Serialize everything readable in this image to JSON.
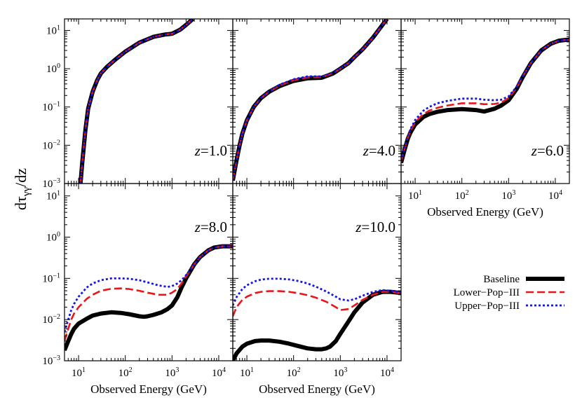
{
  "figure": {
    "ylabel": "dτγγ/dz",
    "xlabel": "Observed Energy (GeV)"
  },
  "legend": {
    "placement": "bottom-right",
    "items": [
      {
        "label": "Baseline",
        "color": "#000000",
        "style": "solid"
      },
      {
        "label": "Lower−Pop−III",
        "color": "#e8151b",
        "style": "dashed"
      },
      {
        "label": "Upper−Pop−III",
        "color": "#1515e6",
        "style": "dotted"
      }
    ]
  },
  "chart_data": [
    {
      "type": "line",
      "panel": "z=1.0",
      "annotation": "z=1.0",
      "xscale": "log",
      "yscale": "log",
      "xlim": [
        5,
        20000
      ],
      "ylim": [
        0.001,
        20
      ],
      "series": [
        {
          "name": "Baseline",
          "x": [
            11,
            12,
            14,
            16,
            20,
            25,
            30,
            40,
            60,
            100,
            200,
            400,
            700,
            1000,
            1500,
            2000,
            2800
          ],
          "y": [
            0.001,
            0.0035,
            0.025,
            0.09,
            0.25,
            0.5,
            0.75,
            1.1,
            1.7,
            2.8,
            4.8,
            6.8,
            7.8,
            8.2,
            10.5,
            14,
            20
          ]
        },
        {
          "name": "Lower−Pop−III",
          "x": [
            11,
            12,
            14,
            16,
            20,
            25,
            30,
            40,
            60,
            100,
            200,
            400,
            700,
            1000,
            1500,
            2000,
            2800
          ],
          "y": [
            0.001,
            0.0035,
            0.025,
            0.09,
            0.25,
            0.5,
            0.75,
            1.1,
            1.7,
            2.8,
            4.8,
            6.8,
            7.8,
            8.2,
            10.5,
            14,
            20
          ]
        },
        {
          "name": "Upper−Pop−III",
          "x": [
            11,
            12,
            14,
            16,
            20,
            25,
            30,
            40,
            60,
            100,
            200,
            400,
            700,
            1000,
            1500,
            2000,
            2800
          ],
          "y": [
            0.001,
            0.0035,
            0.025,
            0.09,
            0.25,
            0.5,
            0.75,
            1.1,
            1.7,
            2.8,
            4.8,
            6.8,
            7.8,
            8.2,
            10.5,
            14,
            20
          ]
        }
      ]
    },
    {
      "type": "line",
      "panel": "z=4.0",
      "annotation": "z=4.0",
      "xscale": "log",
      "yscale": "log",
      "xlim": [
        5,
        20000
      ],
      "ylim": [
        0.001,
        20
      ],
      "series": [
        {
          "name": "Baseline",
          "x": [
            5,
            6,
            7,
            8,
            10,
            14,
            20,
            30,
            50,
            100,
            200,
            400,
            700,
            1000,
            1500,
            2000,
            3000,
            5000,
            8000,
            10000
          ],
          "y": [
            0.0012,
            0.004,
            0.01,
            0.02,
            0.045,
            0.1,
            0.17,
            0.25,
            0.35,
            0.48,
            0.56,
            0.58,
            0.75,
            1.0,
            1.4,
            2.0,
            3.2,
            6.5,
            14,
            20
          ]
        },
        {
          "name": "Lower−Pop−III",
          "x": [
            5,
            6,
            7,
            8,
            10,
            14,
            20,
            30,
            50,
            100,
            200,
            400,
            700,
            1000,
            1500,
            2000,
            3000,
            5000,
            8000,
            10000
          ],
          "y": [
            0.0012,
            0.004,
            0.01,
            0.02,
            0.045,
            0.1,
            0.17,
            0.25,
            0.36,
            0.5,
            0.59,
            0.6,
            0.76,
            1.0,
            1.4,
            2.0,
            3.2,
            6.5,
            14,
            20
          ]
        },
        {
          "name": "Upper−Pop−III",
          "x": [
            5,
            6,
            7,
            8,
            10,
            14,
            20,
            30,
            50,
            100,
            200,
            400,
            700,
            1000,
            1500,
            2000,
            3000,
            5000,
            8000,
            10000
          ],
          "y": [
            0.0012,
            0.004,
            0.01,
            0.02,
            0.045,
            0.1,
            0.17,
            0.26,
            0.38,
            0.53,
            0.63,
            0.63,
            0.78,
            1.02,
            1.4,
            2.0,
            3.2,
            6.5,
            14,
            20
          ]
        }
      ]
    },
    {
      "type": "line",
      "panel": "z=6.0",
      "annotation": "z=6.0",
      "xscale": "log",
      "yscale": "log",
      "xlim": [
        5,
        20000
      ],
      "ylim": [
        0.001,
        20
      ],
      "series": [
        {
          "name": "Baseline",
          "x": [
            5,
            6,
            7,
            8,
            10,
            15,
            20,
            30,
            50,
            100,
            200,
            300,
            500,
            700,
            1000,
            1500,
            2000,
            3000,
            5000,
            8000,
            12000,
            20000
          ],
          "y": [
            0.0035,
            0.008,
            0.015,
            0.022,
            0.035,
            0.055,
            0.065,
            0.075,
            0.083,
            0.088,
            0.083,
            0.076,
            0.09,
            0.11,
            0.15,
            0.3,
            0.6,
            1.4,
            3.0,
            4.5,
            5.4,
            5.8
          ]
        },
        {
          "name": "Lower−Pop−III",
          "x": [
            5,
            6,
            7,
            8,
            10,
            15,
            20,
            30,
            50,
            100,
            200,
            300,
            500,
            700,
            1000,
            1500,
            2000,
            3000,
            5000,
            8000,
            12000,
            20000
          ],
          "y": [
            0.0037,
            0.0085,
            0.016,
            0.024,
            0.04,
            0.065,
            0.08,
            0.095,
            0.11,
            0.125,
            0.125,
            0.118,
            0.12,
            0.13,
            0.17,
            0.32,
            0.62,
            1.4,
            3.0,
            4.5,
            5.4,
            5.8
          ]
        },
        {
          "name": "Upper−Pop−III",
          "x": [
            5,
            6,
            7,
            8,
            10,
            15,
            20,
            30,
            50,
            100,
            200,
            300,
            500,
            700,
            1000,
            1500,
            2000,
            3000,
            5000,
            8000,
            12000,
            20000
          ],
          "y": [
            0.004,
            0.009,
            0.017,
            0.027,
            0.046,
            0.08,
            0.1,
            0.125,
            0.145,
            0.165,
            0.165,
            0.155,
            0.15,
            0.155,
            0.19,
            0.34,
            0.64,
            1.4,
            3.0,
            4.5,
            5.4,
            5.8
          ]
        }
      ]
    },
    {
      "type": "line",
      "panel": "z=8.0",
      "annotation": "z=8.0",
      "xscale": "log",
      "yscale": "log",
      "xlim": [
        5,
        20000
      ],
      "ylim": [
        0.001,
        20
      ],
      "series": [
        {
          "name": "Baseline",
          "x": [
            5,
            6,
            7,
            8,
            10,
            15,
            20,
            30,
            50,
            80,
            120,
            200,
            250,
            300,
            400,
            600,
            800,
            1000,
            1300,
            1600,
            2000,
            3000,
            4000,
            6000,
            8000,
            12000,
            20000
          ],
          "y": [
            0.0018,
            0.003,
            0.0045,
            0.006,
            0.008,
            0.0105,
            0.0125,
            0.014,
            0.015,
            0.0145,
            0.0135,
            0.012,
            0.0117,
            0.012,
            0.013,
            0.015,
            0.018,
            0.022,
            0.035,
            0.06,
            0.1,
            0.22,
            0.33,
            0.48,
            0.56,
            0.6,
            0.6
          ]
        },
        {
          "name": "Lower−Pop−III",
          "x": [
            5,
            6,
            7,
            8,
            10,
            15,
            20,
            30,
            50,
            80,
            120,
            200,
            300,
            500,
            800,
            1000,
            1300,
            1600,
            2000,
            3000,
            4000,
            6000,
            8000,
            12000,
            20000
          ],
          "y": [
            0.003,
            0.006,
            0.01,
            0.014,
            0.02,
            0.032,
            0.04,
            0.05,
            0.056,
            0.057,
            0.055,
            0.05,
            0.045,
            0.04,
            0.04,
            0.045,
            0.055,
            0.075,
            0.11,
            0.22,
            0.33,
            0.48,
            0.56,
            0.6,
            0.6
          ]
        },
        {
          "name": "Upper−Pop−III",
          "x": [
            5,
            6,
            7,
            8,
            10,
            15,
            20,
            30,
            50,
            80,
            120,
            200,
            300,
            500,
            800,
            1000,
            1300,
            1600,
            2000,
            3000,
            4000,
            6000,
            8000,
            12000,
            20000
          ],
          "y": [
            0.005,
            0.01,
            0.017,
            0.024,
            0.036,
            0.06,
            0.075,
            0.09,
            0.1,
            0.1,
            0.098,
            0.09,
            0.08,
            0.068,
            0.062,
            0.065,
            0.075,
            0.09,
            0.12,
            0.22,
            0.33,
            0.48,
            0.56,
            0.6,
            0.6
          ]
        }
      ]
    },
    {
      "type": "line",
      "panel": "z=10.0",
      "annotation": "z=10.0",
      "xscale": "log",
      "yscale": "log",
      "xlim": [
        5,
        20000
      ],
      "ylim": [
        0.001,
        20
      ],
      "series": [
        {
          "name": "Baseline",
          "x": [
            5,
            6,
            8,
            10,
            15,
            20,
            30,
            50,
            80,
            120,
            200,
            300,
            400,
            500,
            600,
            800,
            1000,
            1500,
            2000,
            3000,
            5000,
            8000,
            12000,
            20000
          ],
          "y": [
            0.001,
            0.0015,
            0.0022,
            0.0026,
            0.003,
            0.0031,
            0.0031,
            0.0029,
            0.0026,
            0.0023,
            0.002,
            0.0019,
            0.0019,
            0.002,
            0.0022,
            0.003,
            0.0045,
            0.009,
            0.015,
            0.026,
            0.04,
            0.047,
            0.047,
            0.044
          ]
        },
        {
          "name": "Lower−Pop−III",
          "x": [
            5,
            6,
            8,
            10,
            15,
            20,
            30,
            50,
            80,
            120,
            200,
            300,
            500,
            800,
            1000,
            1500,
            2000,
            3000,
            5000,
            8000,
            12000,
            20000
          ],
          "y": [
            0.012,
            0.02,
            0.03,
            0.036,
            0.044,
            0.047,
            0.049,
            0.049,
            0.047,
            0.044,
            0.039,
            0.034,
            0.027,
            0.02,
            0.017,
            0.018,
            0.022,
            0.03,
            0.04,
            0.047,
            0.047,
            0.044
          ]
        },
        {
          "name": "Upper−Pop−III",
          "x": [
            5,
            6,
            8,
            10,
            15,
            20,
            30,
            50,
            80,
            120,
            200,
            300,
            500,
            800,
            1000,
            1500,
            2000,
            3000,
            5000,
            8000,
            12000,
            20000
          ],
          "y": [
            0.022,
            0.035,
            0.055,
            0.068,
            0.085,
            0.093,
            0.098,
            0.098,
            0.094,
            0.087,
            0.075,
            0.063,
            0.048,
            0.036,
            0.031,
            0.029,
            0.031,
            0.038,
            0.047,
            0.052,
            0.05,
            0.046
          ]
        }
      ]
    }
  ]
}
